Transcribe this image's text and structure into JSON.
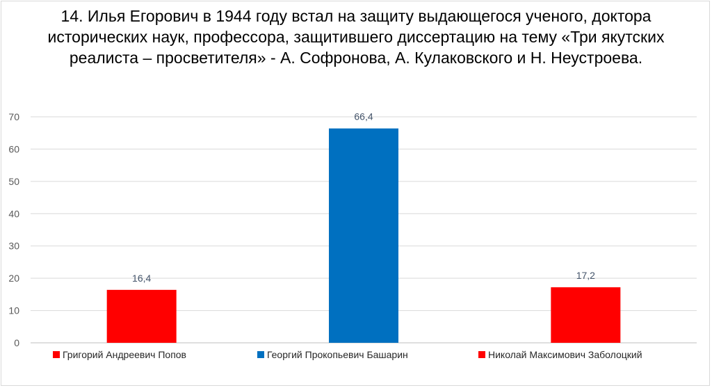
{
  "chart_data": {
    "type": "bar",
    "title": "14. Илья Егорович в 1944 году встал на защиту выдающегося ученого, доктора исторических наук, профессора, защитившего диссертацию на тему «Три якутских реалиста – просветителя» - А. Софронова, А. Кулаковского и Н. Неустроева.",
    "categories": [
      "Григорий Андреевич Попов",
      "Георгий Прокопьевич Башарин",
      "Николай Максимович Заболоцкий"
    ],
    "values": [
      16.4,
      66.4,
      17.2
    ],
    "data_labels": [
      "16,4",
      "66,4",
      "17,2"
    ],
    "colors": [
      "#ff0000",
      "#0070c0",
      "#ff0000"
    ],
    "ylim": [
      0,
      70
    ],
    "yticks": [
      0,
      10,
      20,
      30,
      40,
      50,
      60,
      70
    ],
    "grid": true,
    "legend": "bottom",
    "xlabel": "",
    "ylabel": ""
  }
}
